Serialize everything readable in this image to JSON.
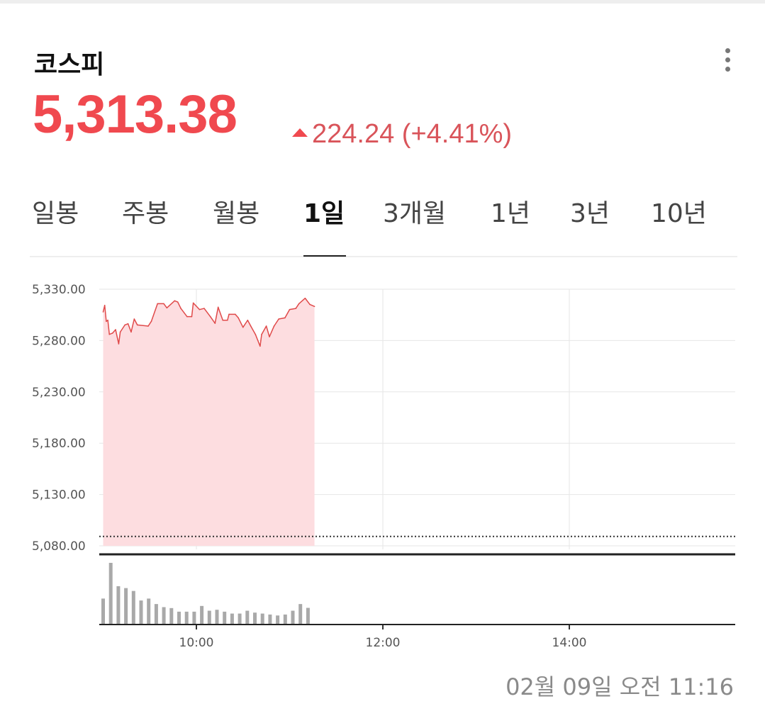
{
  "header": {
    "title": "코스피",
    "more_icon": "vertical-ellipsis-icon"
  },
  "quote": {
    "price": "5,313.38",
    "direction_icon": "triangle-up-icon",
    "change": "224.24",
    "change_pct": "(+4.41%)",
    "up_color": "#f0494f"
  },
  "tabs": [
    {
      "label": "일봉",
      "active": false
    },
    {
      "label": "주봉",
      "active": false
    },
    {
      "label": "월봉",
      "active": false
    },
    {
      "label": "1일",
      "active": true
    },
    {
      "label": "3개월",
      "active": false
    },
    {
      "label": "1년",
      "active": false
    },
    {
      "label": "3년",
      "active": false
    },
    {
      "label": "10년",
      "active": false
    }
  ],
  "timestamp": "02월 09일 오전 11:16",
  "chart_data": {
    "type": "area",
    "xlim": [
      "09:00",
      "15:47"
    ],
    "ylim": [
      5080,
      5330
    ],
    "y_ticks": [
      "5,330.00",
      "5,280.00",
      "5,230.00",
      "5,180.00",
      "5,130.00",
      "5,080.00"
    ],
    "y_tick_values": [
      5330,
      5280,
      5230,
      5180,
      5130,
      5080
    ],
    "x_ticks": [
      "10:00",
      "12:00",
      "14:00"
    ],
    "grid": true,
    "previous_close": 5089.14,
    "line_color": "#e04a4a",
    "fill_color": "#fddde0",
    "price": {
      "x": [
        "09:00",
        "09:01",
        "09:02",
        "09:03",
        "09:04",
        "09:06",
        "09:08",
        "09:10",
        "09:11",
        "09:14",
        "09:16",
        "09:18",
        "09:20",
        "09:22",
        "09:29",
        "09:31",
        "09:35",
        "09:39",
        "09:41",
        "09:46",
        "09:48",
        "09:50",
        "09:54",
        "09:57",
        "09:58",
        "10:02",
        "10:05",
        "10:09",
        "10:12",
        "10:14",
        "10:17",
        "10:20",
        "10:21",
        "10:25",
        "10:27",
        "10:30",
        "10:33",
        "10:35",
        "10:38",
        "10:41",
        "10:42",
        "10:45",
        "10:47",
        "10:50",
        "10:53",
        "10:57",
        "11:00",
        "11:04",
        "11:06",
        "11:10",
        "11:13",
        "11:16"
      ],
      "y": [
        5307.9,
        5314.3,
        5298.7,
        5299.8,
        5286.0,
        5287.2,
        5290.6,
        5276.8,
        5288.3,
        5295.2,
        5296.4,
        5288.3,
        5301.0,
        5295.2,
        5294.1,
        5298.7,
        5315.9,
        5315.9,
        5311.8,
        5318.7,
        5317.5,
        5311.3,
        5303.3,
        5303.3,
        5316.6,
        5310.2,
        5311.3,
        5303.3,
        5296.8,
        5312.5,
        5299.8,
        5299.8,
        5305.6,
        5305.6,
        5302.1,
        5292.9,
        5299.8,
        5294.1,
        5286.0,
        5274.5,
        5286.0,
        5294.1,
        5283.7,
        5294.1,
        5301.0,
        5302.1,
        5310.2,
        5311.3,
        5315.9,
        5321.2,
        5315.2,
        5313.2
      ]
    },
    "volume": {
      "type": "bar",
      "color": "#a9a9a9",
      "x": [
        "09:00",
        "09:05",
        "09:10",
        "09:15",
        "09:20",
        "09:25",
        "09:30",
        "09:35",
        "09:40",
        "09:45",
        "09:50",
        "09:55",
        "10:00",
        "10:05",
        "10:10",
        "10:15",
        "10:20",
        "10:25",
        "10:30",
        "10:35",
        "10:40",
        "10:45",
        "10:50",
        "10:55",
        "11:00",
        "11:05",
        "11:10",
        "11:15"
      ],
      "values": [
        106,
        256,
        158,
        150,
        138,
        98,
        106,
        83,
        70,
        66,
        51,
        51,
        51,
        75,
        55,
        59,
        51,
        43,
        43,
        55,
        47,
        43,
        39,
        35,
        39,
        55,
        83,
        67
      ]
    }
  }
}
